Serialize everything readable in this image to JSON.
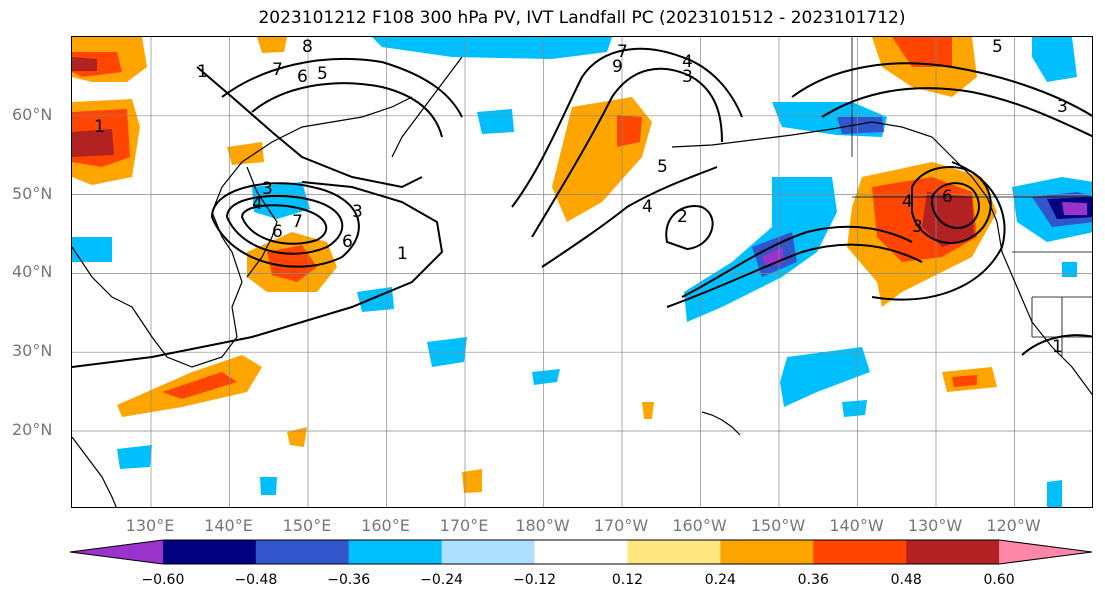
{
  "title": "2023101212 F108 300 hPa PV, IVT Landfall PC (2023101512 - 2023101712)",
  "lat_labels": [
    {
      "text": "60°N",
      "lat": 60
    },
    {
      "text": "50°N",
      "lat": 50
    },
    {
      "text": "40°N",
      "lat": 40
    },
    {
      "text": "30°N",
      "lat": 30
    },
    {
      "text": "20°N",
      "lat": 20
    }
  ],
  "lon_labels": [
    {
      "text": "130°E",
      "lon": 130
    },
    {
      "text": "140°E",
      "lon": 140
    },
    {
      "text": "150°E",
      "lon": 150
    },
    {
      "text": "160°E",
      "lon": 160
    },
    {
      "text": "170°E",
      "lon": 170
    },
    {
      "text": "180°W",
      "lon": 180
    },
    {
      "text": "170°W",
      "lon": 190
    },
    {
      "text": "160°W",
      "lon": 200
    },
    {
      "text": "150°W",
      "lon": 210
    },
    {
      "text": "140°W",
      "lon": 220
    },
    {
      "text": "130°W",
      "lon": 230
    },
    {
      "text": "120°W",
      "lon": 240
    }
  ],
  "colorbar": {
    "colors": [
      "#9933cc",
      "#000080",
      "#3355cc",
      "#00bfff",
      "#b0e0ff",
      "#ffffff",
      "#ffe680",
      "#ffa500",
      "#ff4500",
      "#b22222",
      "#ff88aa"
    ],
    "ticks": [
      "−0.60",
      "−0.48",
      "−0.36",
      "−0.24",
      "−0.12",
      "0.12",
      "0.24",
      "0.36",
      "0.48",
      "0.60"
    ]
  },
  "contour_labels": [
    "1",
    "3",
    "4",
    "6",
    "7",
    "3",
    "6",
    "1",
    "1",
    "8",
    "6",
    "7",
    "5",
    "7",
    "4",
    "9",
    "3",
    "5",
    "4",
    "2",
    "4",
    "6",
    "3",
    "5",
    "3",
    "1"
  ]
}
